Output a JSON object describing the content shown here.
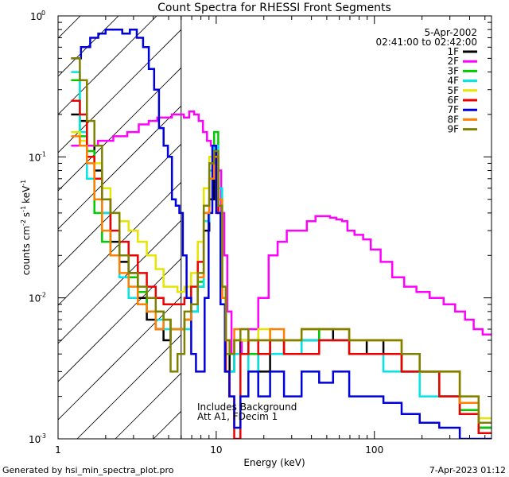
{
  "chart_data": {
    "type": "line",
    "title": "Count Spectra for RHESSI Front Segments",
    "xlabel": "Energy (keV)",
    "ylabel": "counts cm",
    "ylabel_unit_1": "-2",
    "ylabel_mid": "s",
    "ylabel_unit_2": "-1",
    "ylabel_end": "keV",
    "ylabel_unit_3": "-1",
    "xscale": "log",
    "yscale": "log",
    "xlim": [
      1,
      550
    ],
    "ylim": [
      0.001,
      1.0
    ],
    "x_ticks": [
      {
        "value": 1,
        "label": "1"
      },
      {
        "value": 10,
        "label": "10"
      },
      {
        "value": 100,
        "label": "100"
      }
    ],
    "y_ticks": [
      {
        "value": 1,
        "label": "10",
        "exp": "0"
      },
      {
        "value": 0.1,
        "label": "10",
        "exp": "-1"
      },
      {
        "value": 0.01,
        "label": "10",
        "exp": "-2"
      },
      {
        "value": 0.001,
        "label": "10",
        "exp": "-3"
      }
    ],
    "date": "5-Apr-2002",
    "time_range": "02:41:00 to 02:42:00",
    "annotation_line1": "Includes Background",
    "annotation_line2": "Att A1, FDecim 1",
    "excluded_region_max_kev": 6.0,
    "series": [
      {
        "name": "1F",
        "color": "#000000",
        "x": [
          1.3,
          1.45,
          1.6,
          1.8,
          2.0,
          2.3,
          2.6,
          3.0,
          3.4,
          3.9,
          4.4,
          4.9,
          5.4,
          6.0,
          6.6,
          7.3,
          8.0,
          8.7,
          9.4,
          10.0,
          10.6,
          11.2,
          11.8,
          12.5,
          13.5,
          15,
          17,
          20,
          24,
          30,
          40,
          50,
          60,
          80,
          100,
          130,
          170,
          220,
          300,
          400,
          520
        ],
        "y": [
          0.2,
          0.18,
          0.12,
          0.08,
          0.04,
          0.025,
          0.018,
          0.015,
          0.01,
          0.007,
          0.006,
          0.005,
          0.006,
          0.006,
          0.007,
          0.008,
          0.012,
          0.03,
          0.05,
          0.09,
          0.04,
          0.01,
          0.004,
          0.003,
          0.004,
          0.005,
          0.004,
          0.003,
          0.005,
          0.004,
          0.005,
          0.006,
          0.005,
          0.004,
          0.005,
          0.004,
          0.003,
          0.003,
          0.002,
          0.0015,
          0.0012
        ]
      },
      {
        "name": "2F",
        "color": "#ff00ff",
        "x": [
          1.3,
          1.6,
          2.0,
          2.5,
          3.0,
          3.5,
          4.0,
          4.5,
          5.0,
          5.5,
          6.0,
          6.5,
          7.0,
          7.5,
          8.0,
          8.5,
          9.0,
          9.5,
          10.0,
          10.5,
          11.0,
          11.5,
          12.0,
          13.0,
          14.0,
          15.0,
          17.0,
          20.0,
          23.0,
          26.0,
          30.0,
          35.0,
          40.0,
          45.0,
          50.0,
          55.0,
          60.0,
          65.0,
          70.0,
          80.0,
          90.0,
          100.0,
          120.0,
          140.0,
          170.0,
          200.0,
          250.0,
          300.0,
          350.0,
          400.0,
          450.0,
          520.0
        ],
        "y": [
          0.12,
          0.12,
          0.13,
          0.14,
          0.15,
          0.17,
          0.18,
          0.19,
          0.19,
          0.2,
          0.2,
          0.19,
          0.21,
          0.2,
          0.18,
          0.15,
          0.13,
          0.12,
          0.1,
          0.08,
          0.04,
          0.02,
          0.008,
          0.004,
          0.004,
          0.005,
          0.006,
          0.01,
          0.02,
          0.025,
          0.03,
          0.03,
          0.035,
          0.038,
          0.038,
          0.037,
          0.036,
          0.035,
          0.03,
          0.028,
          0.026,
          0.022,
          0.018,
          0.014,
          0.012,
          0.011,
          0.01,
          0.009,
          0.008,
          0.007,
          0.006,
          0.0055
        ]
      },
      {
        "name": "3F",
        "color": "#00cc00",
        "x": [
          1.3,
          1.45,
          1.6,
          1.8,
          2.0,
          2.3,
          2.6,
          3.0,
          3.4,
          3.9,
          4.4,
          4.9,
          5.4,
          6.0,
          6.6,
          7.3,
          8.0,
          8.7,
          9.4,
          10.0,
          10.6,
          11.2,
          11.8,
          12.5,
          13.5,
          15,
          17,
          20,
          24,
          30,
          40,
          50,
          60,
          80,
          100,
          130,
          170,
          220,
          300,
          400,
          520
        ],
        "y": [
          0.35,
          0.14,
          0.11,
          0.04,
          0.025,
          0.02,
          0.02,
          0.014,
          0.011,
          0.008,
          0.008,
          0.007,
          0.006,
          0.006,
          0.007,
          0.009,
          0.013,
          0.035,
          0.08,
          0.15,
          0.05,
          0.012,
          0.004,
          0.004,
          0.005,
          0.005,
          0.004,
          0.004,
          0.004,
          0.005,
          0.006,
          0.005,
          0.005,
          0.004,
          0.004,
          0.004,
          0.003,
          0.003,
          0.002,
          0.0016,
          0.0012
        ]
      },
      {
        "name": "4F",
        "color": "#00e5e5",
        "x": [
          1.3,
          1.45,
          1.6,
          1.8,
          2.0,
          2.3,
          2.6,
          3.0,
          3.4,
          3.9,
          4.4,
          4.9,
          5.4,
          6.0,
          6.6,
          7.3,
          8.0,
          8.7,
          9.4,
          10.0,
          10.6,
          11.2,
          11.8,
          12.5,
          13.5,
          15,
          17,
          20,
          24,
          30,
          40,
          50,
          60,
          80,
          100,
          130,
          170,
          220,
          300,
          400,
          520
        ],
        "y": [
          0.4,
          0.15,
          0.07,
          0.05,
          0.04,
          0.02,
          0.014,
          0.01,
          0.009,
          0.008,
          0.007,
          0.006,
          0.006,
          0.006,
          0.006,
          0.008,
          0.012,
          0.035,
          0.08,
          0.12,
          0.06,
          0.01,
          0.003,
          0.003,
          0.004,
          0.004,
          0.003,
          0.004,
          0.004,
          0.004,
          0.005,
          0.005,
          0.005,
          0.004,
          0.004,
          0.003,
          0.003,
          0.002,
          0.002,
          0.0015,
          0.0011
        ]
      },
      {
        "name": "5F",
        "color": "#e5e500",
        "x": [
          1.3,
          1.45,
          1.6,
          1.8,
          2.0,
          2.3,
          2.6,
          3.0,
          3.4,
          3.9,
          4.4,
          4.9,
          5.4,
          6.0,
          6.6,
          7.3,
          8.0,
          8.7,
          9.4,
          10.0,
          10.6,
          11.2,
          11.8,
          12.5,
          13.5,
          15,
          17,
          20,
          24,
          30,
          40,
          50,
          60,
          80,
          100,
          130,
          170,
          220,
          300,
          400,
          520
        ],
        "y": [
          0.15,
          0.13,
          0.1,
          0.09,
          0.06,
          0.04,
          0.035,
          0.03,
          0.025,
          0.02,
          0.016,
          0.012,
          0.012,
          0.011,
          0.012,
          0.015,
          0.025,
          0.06,
          0.1,
          0.08,
          0.04,
          0.012,
          0.005,
          0.004,
          0.005,
          0.005,
          0.005,
          0.006,
          0.005,
          0.005,
          0.006,
          0.006,
          0.006,
          0.005,
          0.005,
          0.005,
          0.004,
          0.003,
          0.003,
          0.002,
          0.0014
        ]
      },
      {
        "name": "6F",
        "color": "#ee0000",
        "x": [
          1.3,
          1.45,
          1.6,
          1.8,
          2.0,
          2.3,
          2.6,
          3.0,
          3.4,
          3.9,
          4.4,
          4.9,
          5.4,
          6.0,
          6.6,
          7.3,
          8.0,
          8.7,
          9.4,
          10.0,
          10.6,
          11.2,
          11.8,
          12.5,
          13.5,
          15,
          17,
          20,
          24,
          30,
          40,
          50,
          60,
          80,
          100,
          130,
          170,
          220,
          300,
          400,
          520
        ],
        "y": [
          0.25,
          0.2,
          0.1,
          0.07,
          0.05,
          0.03,
          0.025,
          0.02,
          0.015,
          0.012,
          0.01,
          0.009,
          0.009,
          0.009,
          0.01,
          0.012,
          0.018,
          0.04,
          0.07,
          0.1,
          0.04,
          0.01,
          0.003,
          0.002,
          0.001,
          0.004,
          0.005,
          0.004,
          0.005,
          0.004,
          0.004,
          0.005,
          0.005,
          0.004,
          0.004,
          0.004,
          0.003,
          0.003,
          0.002,
          0.0015,
          0.0011
        ]
      },
      {
        "name": "7F",
        "color": "#0000dd",
        "x": [
          1.3,
          1.5,
          1.7,
          1.9,
          2.1,
          2.4,
          2.7,
          3.0,
          3.3,
          3.6,
          3.9,
          4.2,
          4.5,
          4.8,
          5.1,
          5.4,
          5.7,
          6.0,
          6.3,
          6.7,
          7.2,
          7.7,
          8.2,
          8.7,
          9.2,
          9.7,
          10.3,
          11.0,
          11.7,
          12.5,
          13.5,
          15,
          17,
          20,
          24,
          30,
          40,
          50,
          60,
          80,
          100,
          130,
          170,
          220,
          300,
          400,
          520
        ],
        "y": [
          0.5,
          0.6,
          0.7,
          0.75,
          0.8,
          0.8,
          0.75,
          0.8,
          0.7,
          0.6,
          0.42,
          0.3,
          0.16,
          0.12,
          0.1,
          0.05,
          0.045,
          0.04,
          0.02,
          0.01,
          0.004,
          0.003,
          0.003,
          0.01,
          0.04,
          0.12,
          0.04,
          0.009,
          0.003,
          0.002,
          0.0012,
          0.002,
          0.003,
          0.002,
          0.003,
          0.002,
          0.003,
          0.0025,
          0.003,
          0.002,
          0.002,
          0.0018,
          0.0015,
          0.0013,
          0.0012,
          0.001,
          0.001
        ]
      },
      {
        "name": "8F",
        "color": "#ff7f00",
        "x": [
          1.3,
          1.45,
          1.6,
          1.8,
          2.0,
          2.3,
          2.6,
          3.0,
          3.4,
          3.9,
          4.4,
          4.9,
          5.4,
          6.0,
          6.6,
          7.3,
          8.0,
          8.7,
          9.4,
          10.0,
          10.6,
          11.2,
          11.8,
          12.5,
          13.5,
          15,
          17,
          20,
          24,
          30,
          40,
          50,
          60,
          80,
          100,
          130,
          170,
          220,
          300,
          400,
          520
        ],
        "y": [
          0.14,
          0.12,
          0.09,
          0.05,
          0.03,
          0.02,
          0.015,
          0.012,
          0.009,
          0.008,
          0.006,
          0.007,
          0.006,
          0.006,
          0.007,
          0.009,
          0.014,
          0.04,
          0.07,
          0.1,
          0.05,
          0.01,
          0.005,
          0.004,
          0.006,
          0.006,
          0.005,
          0.005,
          0.006,
          0.005,
          0.006,
          0.006,
          0.006,
          0.005,
          0.005,
          0.005,
          0.004,
          0.003,
          0.003,
          0.0018,
          0.0013
        ]
      },
      {
        "name": "9F",
        "color": "#808000",
        "x": [
          1.3,
          1.45,
          1.6,
          1.8,
          2.0,
          2.3,
          2.6,
          3.0,
          3.4,
          3.9,
          4.4,
          4.9,
          5.4,
          6.0,
          6.6,
          7.3,
          8.0,
          8.7,
          9.4,
          10.0,
          10.6,
          11.2,
          11.8,
          12.5,
          13.5,
          15,
          17,
          20,
          24,
          30,
          40,
          50,
          60,
          80,
          100,
          130,
          170,
          220,
          300,
          400,
          520
        ],
        "y": [
          0.5,
          0.35,
          0.18,
          0.12,
          0.05,
          0.04,
          0.02,
          0.015,
          0.012,
          0.01,
          0.008,
          0.007,
          0.003,
          0.004,
          0.008,
          0.009,
          0.015,
          0.045,
          0.09,
          0.11,
          0.045,
          0.012,
          0.005,
          0.004,
          0.005,
          0.006,
          0.005,
          0.005,
          0.005,
          0.005,
          0.006,
          0.006,
          0.006,
          0.005,
          0.005,
          0.005,
          0.004,
          0.003,
          0.003,
          0.002,
          0.0013
        ]
      }
    ]
  },
  "footer": {
    "generated_by": "Generated by hsi_min_spectra_plot.pro",
    "timestamp": "7-Apr-2023 01:12"
  }
}
